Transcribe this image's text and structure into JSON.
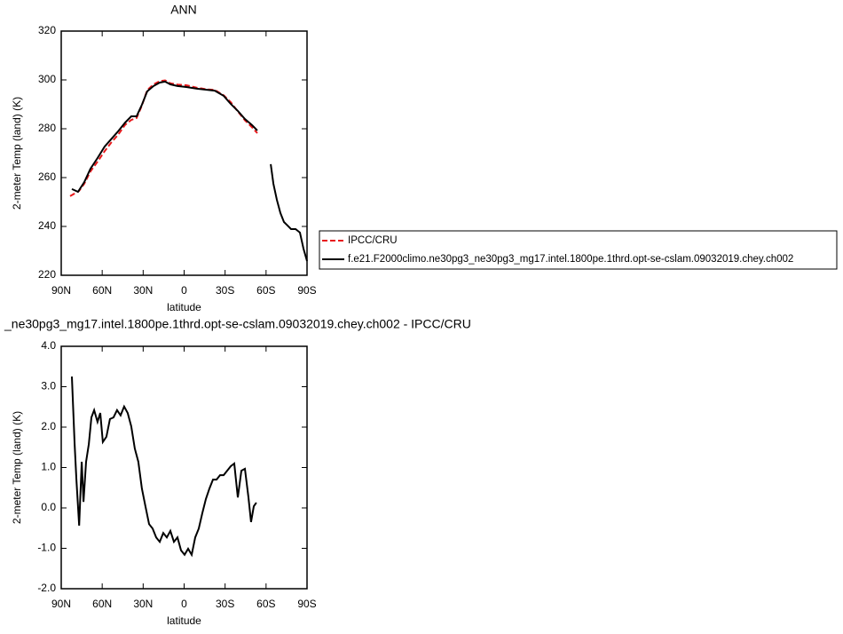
{
  "chart_data": [
    {
      "type": "line",
      "title": "ANN",
      "x_label": "latitude",
      "y_label": "2-meter Temp (land) (K)",
      "xlim": [
        90,
        -90
      ],
      "ylim": [
        220,
        320
      ],
      "xticks": [
        {
          "value": 90,
          "label": "90N"
        },
        {
          "value": 60,
          "label": "60N"
        },
        {
          "value": 30,
          "label": "30N"
        },
        {
          "value": 0,
          "label": "0"
        },
        {
          "value": -30,
          "label": "30S"
        },
        {
          "value": -60,
          "label": "60S"
        },
        {
          "value": -90,
          "label": "90S"
        }
      ],
      "yticks": [
        220,
        240,
        260,
        280,
        300,
        320
      ],
      "legend": "right",
      "series": [
        {
          "name": "IPCC/CRU",
          "color": "#e8191c",
          "dash": true,
          "x": [
            83.5,
            77,
            73.1,
            68.6,
            63.4,
            58.2,
            53.6,
            48.4,
            43.2,
            38.7,
            34.8,
            30.9,
            27,
            22.4,
            17.9,
            14,
            10.1,
            4.9,
            -1.6,
            -9.4,
            -15.9,
            -22.4,
            -28.9,
            -34.1,
            -39.3,
            -44.5,
            -49.7,
            -53.6
          ],
          "values": [
            252.4,
            254.5,
            257.5,
            262.5,
            266.5,
            270.8,
            274.2,
            277.5,
            281.6,
            283.6,
            284.4,
            289.5,
            295.8,
            298.2,
            299.5,
            299.8,
            298.6,
            298.1,
            297.8,
            296.8,
            296.2,
            295.9,
            293.7,
            290.9,
            287.1,
            283.5,
            280.6,
            278.2
          ]
        },
        {
          "name": "f.e21.F2000climo.ne30pg3_ne30pg3_mg17.intel.1800pe.1thrd.opt-se-cslam.09032019.chey.ch002",
          "color": "#000000",
          "dash": false,
          "x": [
            82.2,
            77.7,
            73.1,
            68.6,
            63.4,
            58.2,
            53.6,
            48.4,
            43.2,
            38.7,
            34.8,
            30.9,
            27,
            22.4,
            17.9,
            14,
            10.1,
            4.9,
            -1.6,
            -9.4,
            -15.9,
            -22.4,
            -28.9,
            -34.1,
            -39.3,
            -44.5,
            -49.7,
            -53.6,
            null,
            -63.4,
            -65.4,
            -67.9,
            -70.5,
            -73.1,
            -75.7,
            -78.3,
            -81.6,
            -84.8,
            -87.4,
            -90
          ],
          "values": [
            255.3,
            254.2,
            258.2,
            263.6,
            268,
            272.7,
            275.6,
            278.9,
            282.5,
            285.1,
            285.1,
            289.8,
            295.3,
            297.5,
            298.9,
            299.3,
            298.2,
            297.5,
            297.1,
            296.4,
            296,
            295.6,
            293.5,
            290.2,
            287.3,
            284,
            281.5,
            279.3,
            null,
            265.5,
            257.5,
            250.9,
            245.5,
            241.8,
            240.4,
            238.9,
            238.9,
            237.5,
            230.9,
            225.8
          ]
        }
      ]
    },
    {
      "type": "line",
      "title": "_ne30pg3_mg17.intel.1800pe.1thrd.opt-se-cslam.09032019.chey.ch002 - IPCC/CRU",
      "x_label": "latitude",
      "y_label": "2-meter Temp (land) (K)",
      "xlim": [
        90,
        -90
      ],
      "ylim": [
        -2,
        4
      ],
      "xticks": [
        {
          "value": 90,
          "label": "90N"
        },
        {
          "value": 60,
          "label": "60N"
        },
        {
          "value": 30,
          "label": "30N"
        },
        {
          "value": 0,
          "label": "0"
        },
        {
          "value": -30,
          "label": "30S"
        },
        {
          "value": -60,
          "label": "60S"
        },
        {
          "value": -90,
          "label": "90S"
        }
      ],
      "yticks": [
        {
          "value": -2,
          "label": "-2.0"
        },
        {
          "value": -1,
          "label": "-1.0"
        },
        {
          "value": 0,
          "label": "0.0"
        },
        {
          "value": 1,
          "label": "1.0"
        },
        {
          "value": 2,
          "label": "2.0"
        },
        {
          "value": 3,
          "label": "3.0"
        },
        {
          "value": 4,
          "label": "4.0"
        }
      ],
      "series": [
        {
          "color": "#000000",
          "dash": false,
          "x": [
            82.2,
            80.2,
            78.9,
            76.9,
            75,
            73.7,
            71.8,
            69.8,
            67.9,
            65.9,
            63.4,
            61.4,
            59.5,
            56.9,
            54.3,
            51.7,
            49.1,
            46.5,
            43.9,
            41.3,
            38.7,
            36.1,
            33.5,
            30.9,
            28.3,
            25.7,
            23.1,
            20.5,
            17.9,
            15.3,
            12.7,
            10.1,
            7.5,
            4.9,
            2.3,
            -0.3,
            -2.9,
            -5.5,
            -8.1,
            -10.7,
            -13.3,
            -15.9,
            -18.5,
            -21.1,
            -23.7,
            -26.3,
            -28.9,
            -31.5,
            -34.1,
            -36.7,
            -39.3,
            -41.9,
            -44.5,
            -47.1,
            -49,
            -51,
            -52.9
          ],
          "values": [
            3.25,
            1.58,
            0.7,
            -0.44,
            1.14,
            0.15,
            1.14,
            1.58,
            2.24,
            2.42,
            2.13,
            2.35,
            1.63,
            1.76,
            2.2,
            2.24,
            2.42,
            2.29,
            2.51,
            2.35,
            2.02,
            1.47,
            1.14,
            0.48,
            0.04,
            -0.4,
            -0.51,
            -0.73,
            -0.84,
            -0.62,
            -0.73,
            -0.57,
            -0.84,
            -0.73,
            -1.05,
            -1.16,
            -1.01,
            -1.16,
            -0.73,
            -0.51,
            -0.13,
            0.22,
            0.48,
            0.7,
            0.7,
            0.81,
            0.81,
            0.92,
            1.03,
            1.1,
            0.26,
            0.92,
            0.97,
            0.26,
            -0.35,
            0.04,
            0.13
          ]
        }
      ]
    }
  ]
}
